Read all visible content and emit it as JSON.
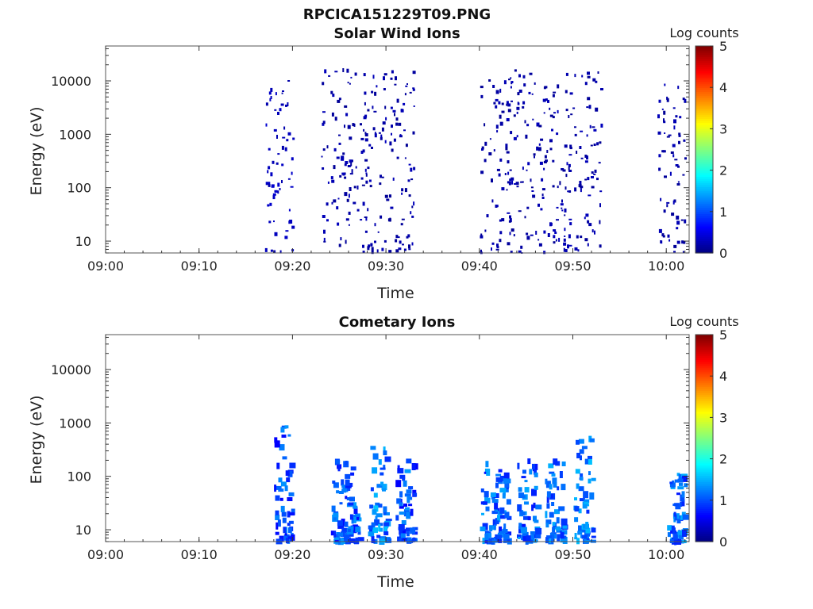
{
  "figure_title": "RPCICA151229T09.PNG",
  "chart_data": [
    {
      "type": "heatmap",
      "title": "Solar Wind Ions",
      "xlabel": "Time",
      "ylabel": "Energy (eV)",
      "x_ticks": [
        "09:00",
        "09:10",
        "09:20",
        "09:30",
        "09:40",
        "09:50",
        "10:00"
      ],
      "x_range": [
        "09:00",
        "10:02"
      ],
      "y_scale": "log",
      "y_ticks": [
        10,
        100,
        1000,
        10000
      ],
      "y_tick_labels": [
        "10",
        "100",
        "1000",
        "10000"
      ],
      "ylim": [
        6,
        45000
      ],
      "colorbar": {
        "label": "Log counts",
        "range": [
          0,
          5
        ],
        "ticks": [
          "0",
          "1",
          "2",
          "3",
          "4",
          "5"
        ]
      },
      "grid": false,
      "activity_intervals": [
        {
          "start": "09:17",
          "end": "09:20",
          "energy_range_eV": [
            6,
            10000
          ],
          "log_counts": 0.3
        },
        {
          "start": "09:23",
          "end": "09:33",
          "energy_range_eV": [
            6,
            16000
          ],
          "log_counts": 0.2
        },
        {
          "start": "09:40",
          "end": "09:53",
          "energy_range_eV": [
            6,
            16000
          ],
          "log_counts": 0.2
        },
        {
          "start": "09:59",
          "end": "10:02",
          "energy_range_eV": [
            6,
            10000
          ],
          "log_counts": 0.2
        }
      ]
    },
    {
      "type": "heatmap",
      "title": "Cometary Ions",
      "xlabel": "Time",
      "ylabel": "Energy (eV)",
      "x_ticks": [
        "09:00",
        "09:10",
        "09:20",
        "09:30",
        "09:40",
        "09:50",
        "10:00"
      ],
      "x_range": [
        "09:00",
        "10:02"
      ],
      "y_scale": "log",
      "y_ticks": [
        10,
        100,
        1000,
        10000
      ],
      "y_tick_labels": [
        "10",
        "100",
        "1000",
        "10000"
      ],
      "ylim": [
        6,
        45000
      ],
      "colorbar": {
        "label": "Log counts",
        "range": [
          0,
          5
        ],
        "ticks": [
          "0",
          "1",
          "2",
          "3",
          "4",
          "5"
        ]
      },
      "grid": false,
      "activity_intervals": [
        {
          "start": "09:18",
          "end": "09:20",
          "energy_range_eV": [
            6,
            900
          ],
          "log_counts": 1.0
        },
        {
          "start": "09:24",
          "end": "09:27",
          "energy_range_eV": [
            6,
            200
          ],
          "log_counts": 1.0
        },
        {
          "start": "09:28",
          "end": "09:30",
          "energy_range_eV": [
            6,
            400
          ],
          "log_counts": 1.2
        },
        {
          "start": "09:31",
          "end": "09:33",
          "energy_range_eV": [
            6,
            200
          ],
          "log_counts": 1.0
        },
        {
          "start": "09:40",
          "end": "09:43",
          "energy_range_eV": [
            6,
            200
          ],
          "log_counts": 1.1
        },
        {
          "start": "09:44",
          "end": "09:46",
          "energy_range_eV": [
            6,
            200
          ],
          "log_counts": 1.1
        },
        {
          "start": "09:47",
          "end": "09:49",
          "energy_range_eV": [
            6,
            200
          ],
          "log_counts": 1.1
        },
        {
          "start": "09:50",
          "end": "09:52",
          "energy_range_eV": [
            6,
            600
          ],
          "log_counts": 1.2
        },
        {
          "start": "10:00",
          "end": "10:02",
          "energy_range_eV": [
            6,
            120
          ],
          "log_counts": 1.1
        }
      ]
    }
  ]
}
